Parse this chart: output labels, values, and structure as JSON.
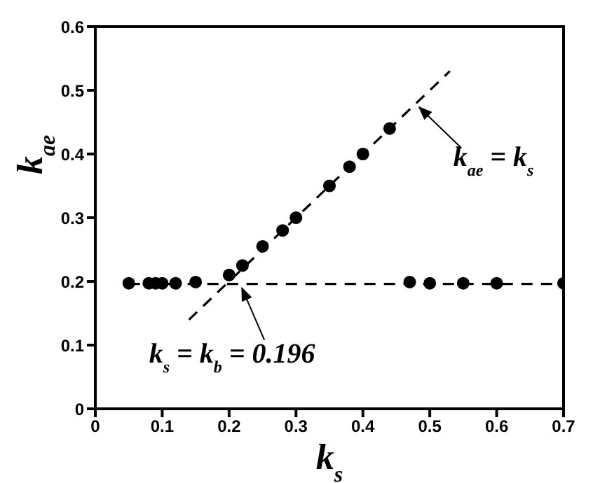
{
  "chart_data": {
    "type": "scatter",
    "xlabel": "k$_{s}$",
    "ylabel": "k$_{ae}$",
    "xlim": [
      0,
      0.7
    ],
    "ylim": [
      0,
      0.6
    ],
    "xticks": [
      0,
      0.1,
      0.2,
      0.3,
      0.4,
      0.5,
      0.6,
      0.7
    ],
    "yticks": [
      0,
      0.1,
      0.2,
      0.3,
      0.4,
      0.5,
      0.6
    ],
    "series": [
      {
        "color": "#000000",
        "marker": "circle",
        "x": [
          0.05,
          0.08,
          0.09,
          0.1,
          0.12,
          0.15,
          0.2,
          0.22,
          0.25,
          0.28,
          0.3,
          0.35,
          0.38,
          0.4,
          0.44,
          0.47,
          0.5,
          0.55,
          0.6,
          0.7
        ],
        "values": [
          0.197,
          0.197,
          0.197,
          0.197,
          0.197,
          0.199,
          0.21,
          0.225,
          0.255,
          0.28,
          0.3,
          0.35,
          0.38,
          0.4,
          0.44,
          0.199,
          0.197,
          0.197,
          0.197,
          0.197
        ]
      },
      {
        "type": "line",
        "color": "#000000",
        "marker": "none",
        "line_style": "dashed",
        "x": [
          0.14,
          0.53
        ],
        "values": [
          0.14,
          0.53
        ]
      },
      {
        "type": "line",
        "color": "#000000",
        "marker": "none",
        "line_style": "dashed",
        "x": [
          0.05,
          0.7
        ],
        "values": [
          0.196,
          0.196
        ]
      }
    ],
    "annotations": [
      {
        "text": "k$_{ae}$ = k$_{s}$",
        "x": 0.48,
        "y": 0.48
      },
      {
        "text": "k$_{s}$ = k$_{b}$ = 0.196",
        "x": 0.215,
        "y": 0.196
      }
    ]
  }
}
